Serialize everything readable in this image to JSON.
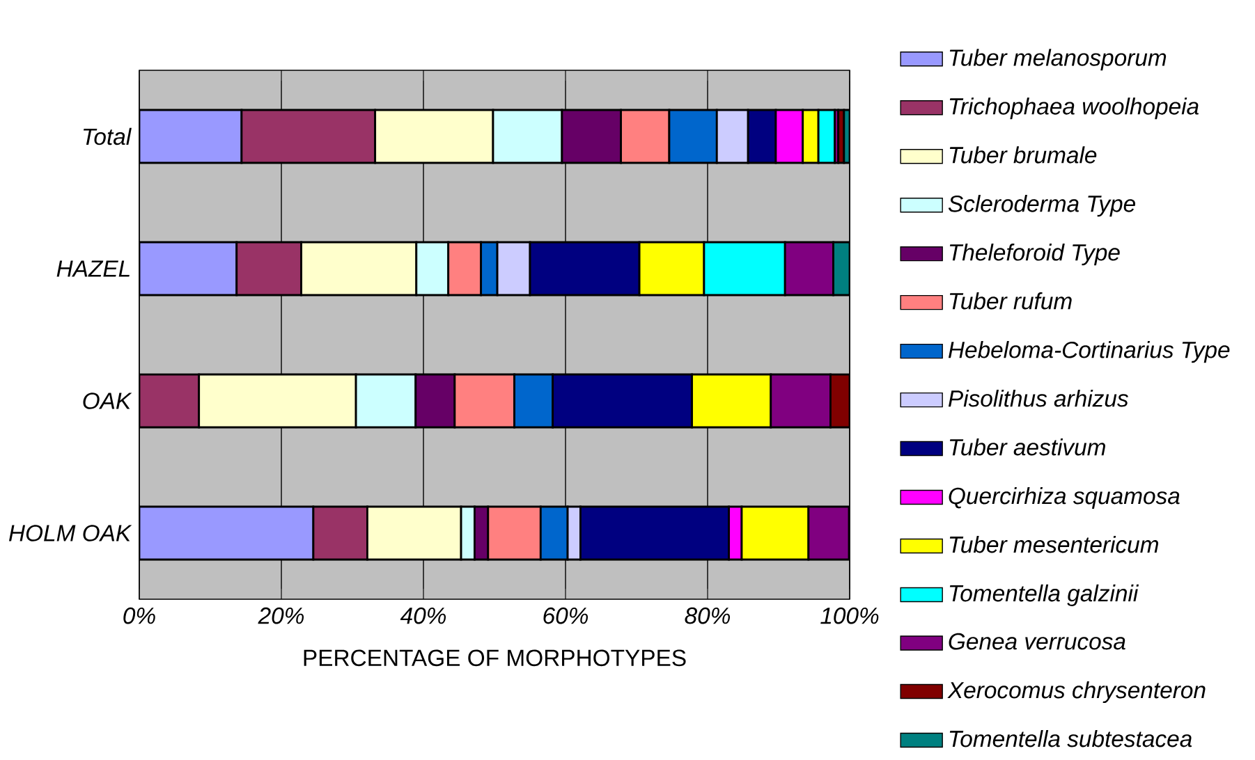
{
  "chart_data": {
    "type": "bar",
    "orientation": "horizontal",
    "stacked": true,
    "categories": [
      "Total",
      "HAZEL",
      "OAK",
      "HOLM OAK"
    ],
    "xlabel": "PERCENTAGE OF MORPHOTYPES",
    "xlim": [
      0,
      100
    ],
    "xticks": [
      {
        "value": 0,
        "label": "0%"
      },
      {
        "value": 20,
        "label": "20%"
      },
      {
        "value": 40,
        "label": "40%"
      },
      {
        "value": 60,
        "label": "60%"
      },
      {
        "value": 80,
        "label": "80%"
      },
      {
        "value": 100,
        "label": "100%"
      }
    ],
    "grid": "x",
    "legend": "right",
    "series": [
      {
        "name": "Tuber melanosporum",
        "color": "#9999ff",
        "values": [
          14.4,
          13.7,
          null,
          24.5
        ]
      },
      {
        "name": "Trichophaea woolhopeia",
        "color": "#993366",
        "values": [
          18.8,
          9.1,
          8.4,
          7.6
        ]
      },
      {
        "name": "Tuber brumale",
        "color": "#ffffcc",
        "values": [
          16.6,
          16.2,
          22.1,
          13.2
        ]
      },
      {
        "name": "Scleroderma Type",
        "color": "#ccffff",
        "values": [
          9.7,
          4.5,
          8.4,
          1.9
        ]
      },
      {
        "name": "Theleforoid Type",
        "color": "#660066",
        "values": [
          8.3,
          null,
          5.5,
          1.9
        ]
      },
      {
        "name": "Tuber rufum",
        "color": "#ff8080",
        "values": [
          6.8,
          4.6,
          8.4,
          7.4
        ]
      },
      {
        "name": "Hebeloma-Cortinarius Type",
        "color": "#0066cc",
        "values": [
          6.7,
          2.3,
          5.4,
          3.8
        ]
      },
      {
        "name": "Pisolithus arhizus",
        "color": "#ccccff",
        "values": [
          4.4,
          4.6,
          null,
          1.8
        ]
      },
      {
        "name": "Tuber aestivum",
        "color": "#000080",
        "values": [
          3.9,
          15.4,
          19.6,
          20.9
        ]
      },
      {
        "name": "Quercirhiza squamosa",
        "color": "#ff00ff",
        "values": [
          3.8,
          null,
          null,
          1.8
        ]
      },
      {
        "name": "Tuber mesentericum",
        "color": "#ffff00",
        "values": [
          2.2,
          9.1,
          11.1,
          9.4
        ]
      },
      {
        "name": "Tomentella galzinii",
        "color": "#00ffff",
        "values": [
          2.3,
          11.4,
          null,
          null
        ]
      },
      {
        "name": "Genea verrucosa",
        "color": "#800080",
        "values": [
          0.5,
          6.8,
          8.4,
          5.7
        ]
      },
      {
        "name": "Xerocomus chrysenteron",
        "color": "#800000",
        "values": [
          0.8,
          null,
          2.7,
          null
        ]
      },
      {
        "name": "Tomentella subtestacea",
        "color": "#008080",
        "values": [
          0.8,
          2.3,
          null,
          null
        ]
      }
    ]
  }
}
